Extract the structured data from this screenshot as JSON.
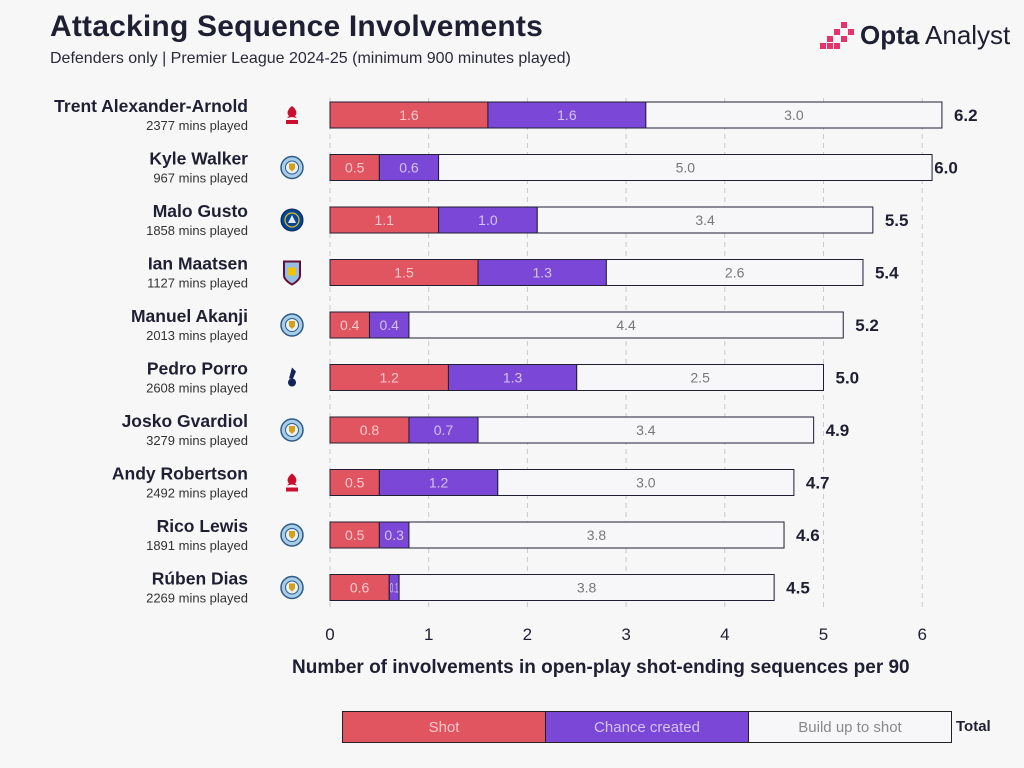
{
  "header": {
    "title": "Attacking Sequence Involvements",
    "subtitle": "Defenders only | Premier League 2024-25 (minimum 900 minutes played)"
  },
  "brand": {
    "name_bold": "Opta",
    "name_rest": " Analyst"
  },
  "colors": {
    "shot": "#e05560",
    "chance": "#7b47d6",
    "build": "#f7f7f9"
  },
  "legend": {
    "shot": "Shot",
    "chance": "Chance created",
    "build": "Build up to shot",
    "total": "Total"
  },
  "chart_data": {
    "type": "bar",
    "orientation": "horizontal",
    "stacked": true,
    "title": "Attacking Sequence Involvements",
    "subtitle": "Defenders only | Premier League 2024-25 (minimum 900 minutes played)",
    "xlabel": "Number of involvements in open-play shot-ending sequences per 90",
    "xlim": [
      0,
      6.5
    ],
    "xticks": [
      0,
      1,
      2,
      3,
      4,
      5,
      6
    ],
    "grid": "vertical dashed",
    "legend_position": "bottom",
    "categories": [
      "Trent Alexander-Arnold",
      "Kyle Walker",
      "Malo Gusto",
      "Ian Maatsen",
      "Manuel Akanji",
      "Pedro Porro",
      "Josko Gvardiol",
      "Andy Robertson",
      "Rico Lewis",
      "Rúben Dias"
    ],
    "minutes": [
      "2377 mins played",
      "967 mins played",
      "1858 mins played",
      "1127 mins played",
      "2013 mins played",
      "2608 mins played",
      "3279 mins played",
      "2492 mins played",
      "1891 mins played",
      "2269 mins played"
    ],
    "clubs": [
      "liverpool",
      "man-city",
      "chelsea",
      "aston-villa",
      "man-city",
      "tottenham",
      "man-city",
      "liverpool",
      "man-city",
      "man-city"
    ],
    "series": [
      {
        "name": "Shot",
        "values": [
          1.6,
          0.5,
          1.1,
          1.5,
          0.4,
          1.2,
          0.8,
          0.5,
          0.5,
          0.6
        ],
        "labels": [
          "1.6",
          "0.5",
          "1.1",
          "1.5",
          "0.4",
          "1.2",
          "0.8",
          "0.5",
          "0.5",
          "0.6"
        ]
      },
      {
        "name": "Chance created",
        "values": [
          1.6,
          0.6,
          1.0,
          1.3,
          0.4,
          1.3,
          0.7,
          1.2,
          0.3,
          0.1
        ],
        "labels": [
          "1.6",
          "0.6",
          "1.0",
          "1.3",
          "0.4",
          "1.3",
          "0.7",
          "1.2",
          "0.3",
          "0.1"
        ]
      },
      {
        "name": "Build up to shot",
        "values": [
          3.0,
          5.0,
          3.4,
          2.6,
          4.4,
          2.5,
          3.4,
          3.0,
          3.8,
          3.8
        ],
        "labels": [
          "3.0",
          "5.0",
          "3.4",
          "2.6",
          "4.4",
          "2.5",
          "3.4",
          "3.0",
          "3.8",
          "3.8"
        ]
      }
    ],
    "totals": [
      6.2,
      6.0,
      5.5,
      5.4,
      5.2,
      5.0,
      4.9,
      4.7,
      4.6,
      4.5
    ],
    "total_labels": [
      "6.2",
      "6.0",
      "5.5",
      "5.4",
      "5.2",
      "5.0",
      "4.9",
      "4.7",
      "4.6",
      "4.5"
    ]
  }
}
